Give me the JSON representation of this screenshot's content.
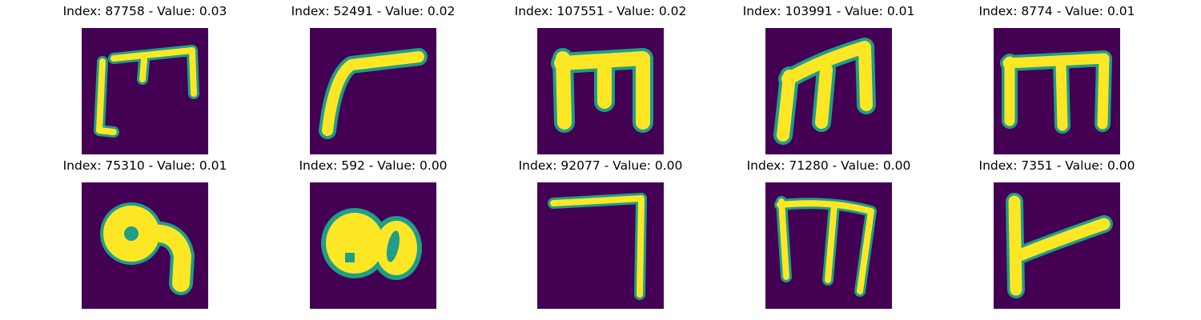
{
  "colors": {
    "background": "#440154",
    "stroke": "#fde725",
    "edge": "#1f9e89"
  },
  "panels": [
    {
      "title": "Index: 87758 - Value: 0.03",
      "glyph": "m-bracket-icon"
    },
    {
      "title": "Index: 52491 - Value: 0.02",
      "glyph": "slanted-stroke-icon"
    },
    {
      "title": "Index: 107551 - Value: 0.02",
      "glyph": "m-block-icon"
    },
    {
      "title": "Index: 103991 - Value: 0.01",
      "glyph": "m-italic-icon"
    },
    {
      "title": "Index: 8774 - Value: 0.01",
      "glyph": "m-tall-icon"
    },
    {
      "title": "Index: 75310 - Value: 0.01",
      "glyph": "loop-hook-icon"
    },
    {
      "title": "Index: 592 - Value: 0.00",
      "glyph": "double-loop-icon"
    },
    {
      "title": "Index: 92077 - Value: 0.00",
      "glyph": "corner-seven-icon"
    },
    {
      "title": "Index: 71280 - Value: 0.00",
      "glyph": "m-thin-icon"
    },
    {
      "title": "Index: 7351 - Value: 0.00",
      "glyph": "t-left-icon"
    }
  ]
}
